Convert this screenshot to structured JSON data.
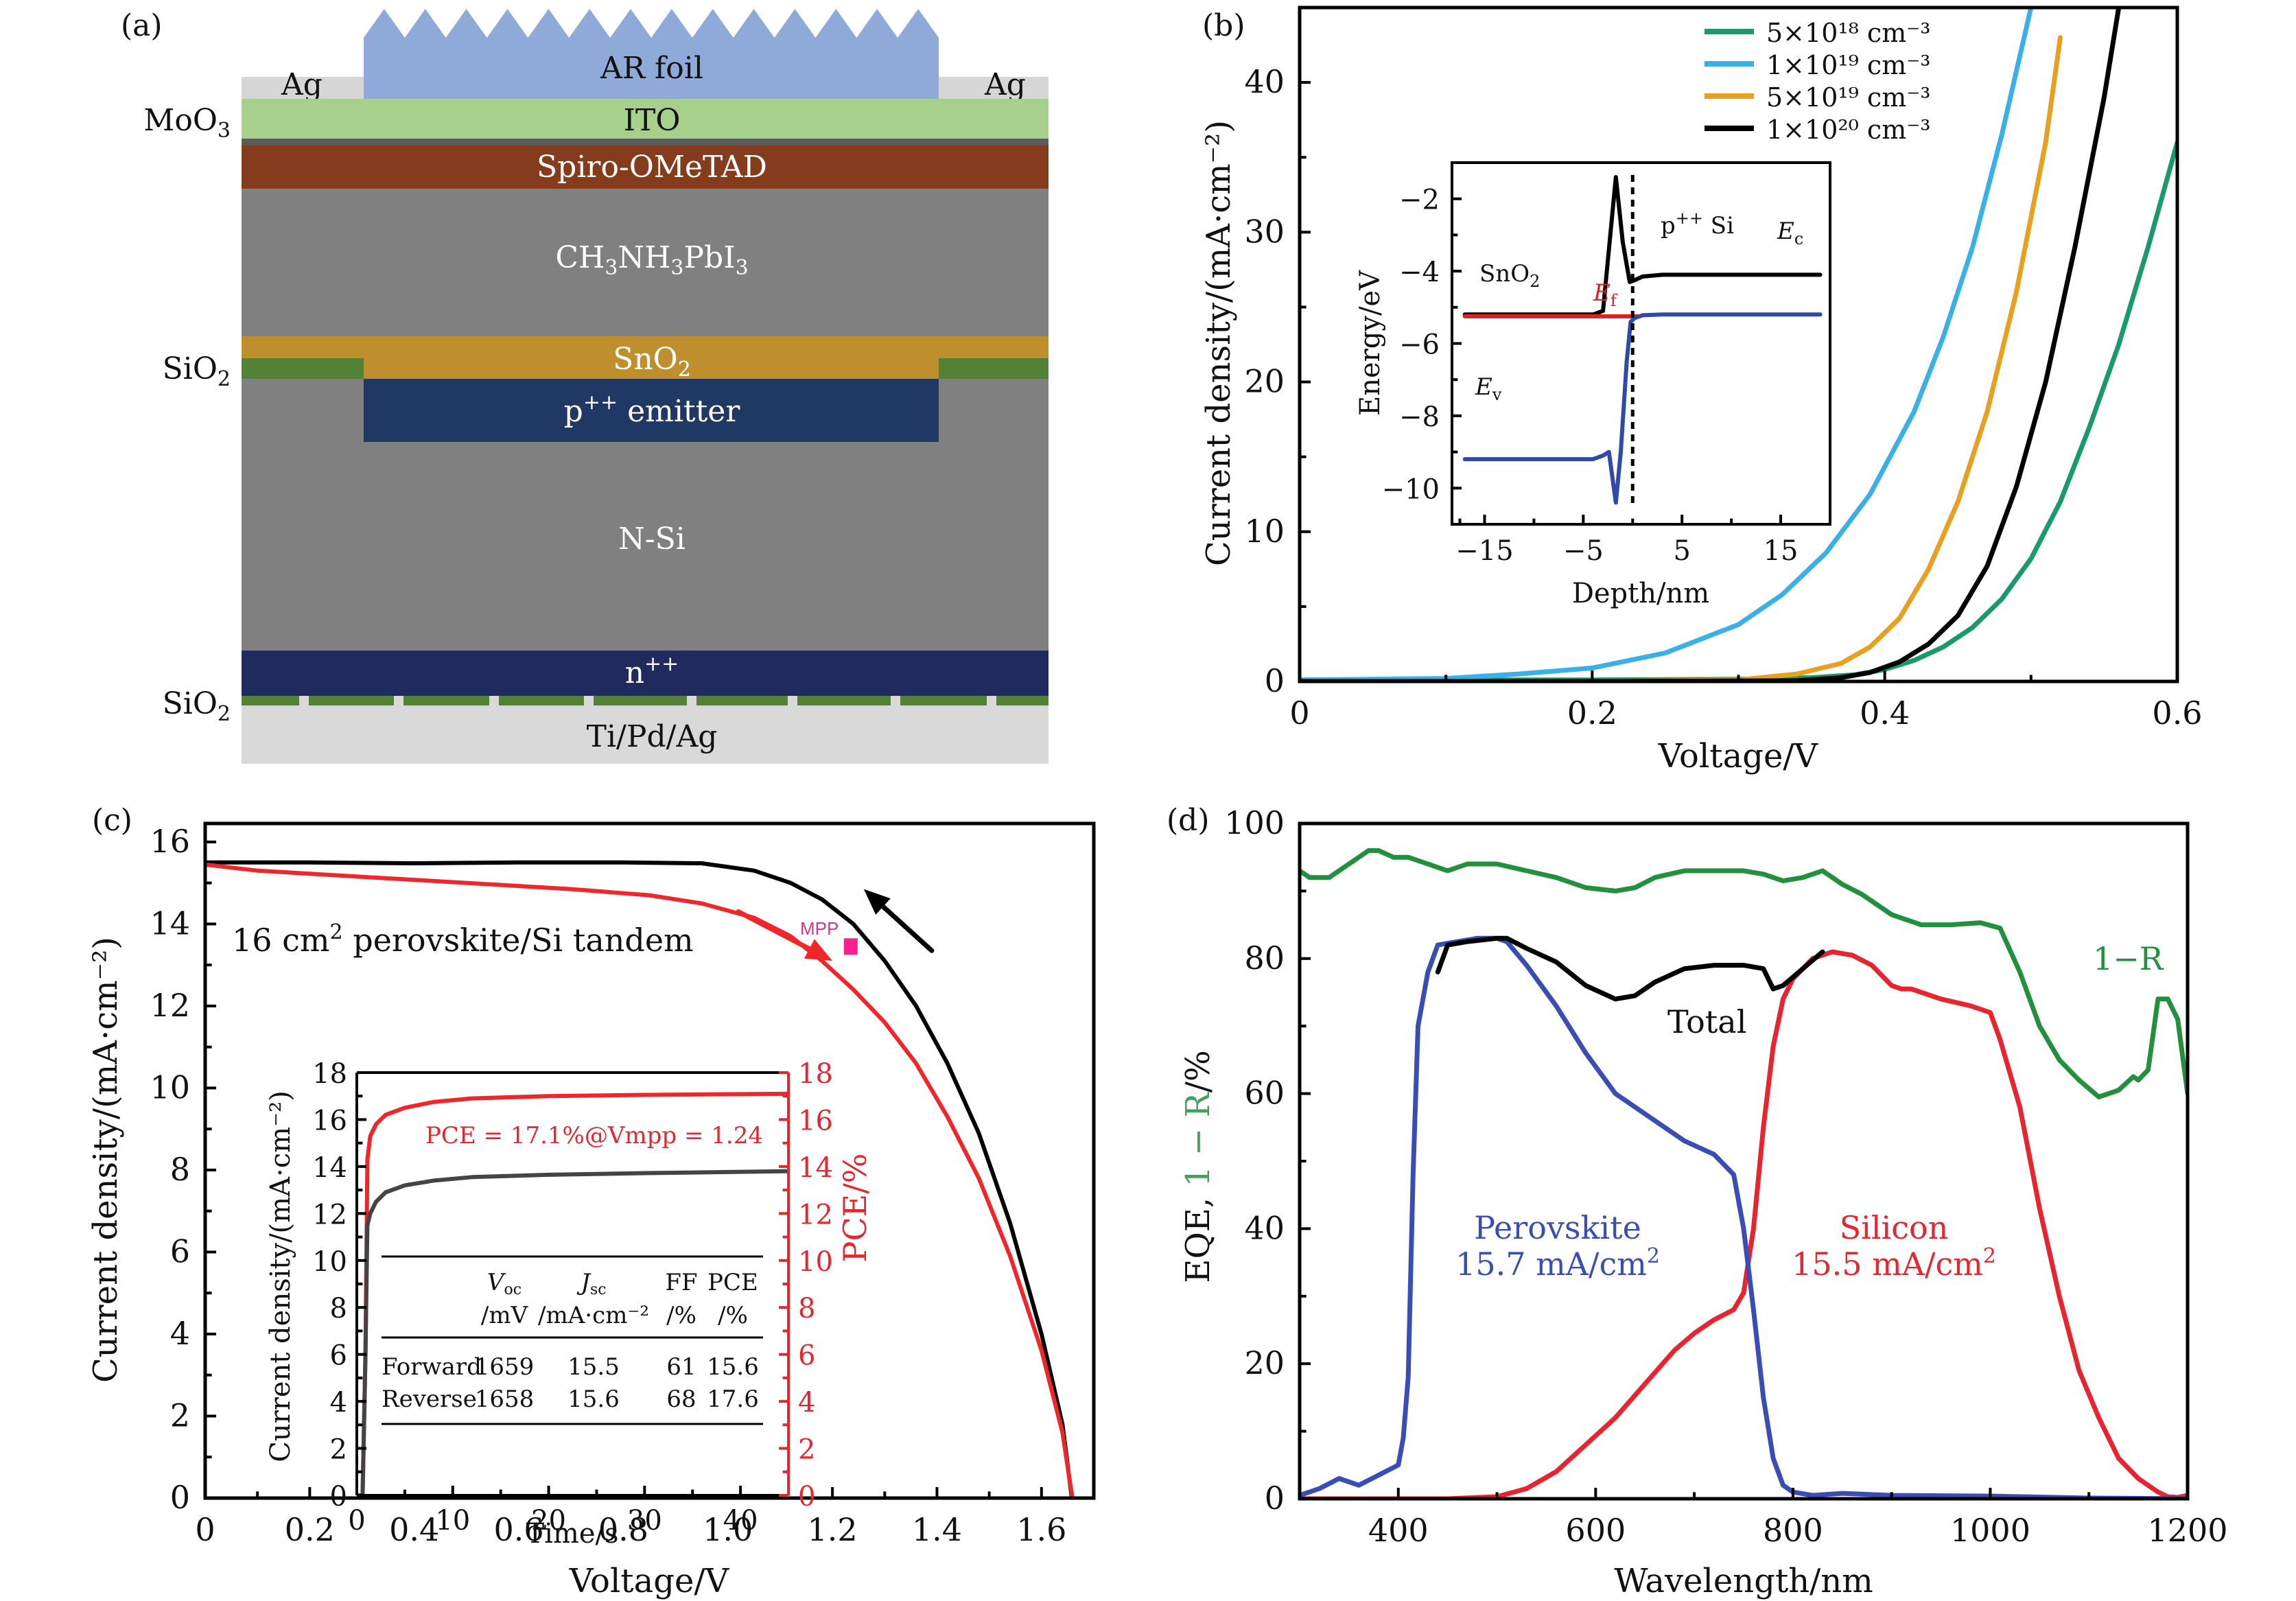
{
  "panel_a": {
    "label": "(a)",
    "layers": {
      "ar_foil": "AR foil",
      "ag_left": "Ag",
      "ag_right": "Ag",
      "ito": "ITO",
      "spiro": "Spiro-OMeTAD",
      "perovskite": "CH3NH3PbI3",
      "sno2": "SnO2",
      "emitter": "p++ emitter",
      "nsi": "N-Si",
      "npp": "n++",
      "metal": "Ti/Pd/Ag"
    },
    "side_labels": {
      "moo3": "MoO3",
      "sio2_top": "SiO2",
      "sio2_bottom": "SiO2"
    },
    "colors": {
      "ar_foil": "#8fa9d8",
      "ag": "#d6d6d6",
      "ito": "#a8d08d",
      "moo3": "#5a5a5a",
      "spiro": "#843c1c",
      "perovskite": "#808080",
      "sno2": "#bf8f2e",
      "sio2": "#538135",
      "emitter": "#1f3864",
      "npp": "#1f2a5e",
      "metal": "#d9d9d9"
    }
  },
  "chart_data": [
    {
      "id": "b",
      "panel_label": "(b)",
      "type": "line",
      "title": "",
      "xlabel": "Voltage/V",
      "ylabel": "Current density/(mA·cm⁻²)",
      "xlim": [
        0,
        0.6
      ],
      "ylim": [
        0,
        45
      ],
      "xticks": [
        0,
        0.2,
        0.4,
        0.6
      ],
      "xtick_labels": [
        "0",
        "0.2",
        "0.4",
        "0.6"
      ],
      "yticks": [
        0,
        10,
        20,
        30,
        40
      ],
      "ytick_labels": [
        "0",
        "10",
        "20",
        "30",
        "40"
      ],
      "legend_position": "top-right",
      "series": [
        {
          "name": "5×10¹⁸ cm⁻³",
          "color": "#1a9a6c",
          "x": [
            0,
            0.1,
            0.2,
            0.3,
            0.35,
            0.38,
            0.4,
            0.42,
            0.44,
            0.46,
            0.48,
            0.5,
            0.52,
            0.54,
            0.56,
            0.58,
            0.6
          ],
          "y": [
            0.1,
            0.1,
            0.1,
            0.15,
            0.25,
            0.45,
            0.8,
            1.4,
            2.3,
            3.6,
            5.5,
            8.2,
            12,
            17,
            22.5,
            29,
            36
          ]
        },
        {
          "name": "1×10¹⁹ cm⁻³",
          "color": "#3bb0e8",
          "x": [
            0,
            0.05,
            0.1,
            0.15,
            0.2,
            0.25,
            0.3,
            0.33,
            0.36,
            0.39,
            0.42,
            0.44,
            0.46,
            0.48,
            0.5
          ],
          "y": [
            0.1,
            0.15,
            0.2,
            0.5,
            0.9,
            1.9,
            3.8,
            5.8,
            8.6,
            12.5,
            18,
            23,
            29,
            36.5,
            45
          ]
        },
        {
          "name": "5×10¹⁹ cm⁻³",
          "color": "#e8a020",
          "x": [
            0,
            0.2,
            0.3,
            0.34,
            0.37,
            0.39,
            0.41,
            0.43,
            0.45,
            0.47,
            0.49,
            0.51,
            0.52
          ],
          "y": [
            0,
            0,
            0.1,
            0.5,
            1.2,
            2.3,
            4.2,
            7.5,
            12,
            18,
            26,
            36,
            43
          ]
        },
        {
          "name": "1×10²⁰ cm⁻³",
          "color": "#000000",
          "x": [
            0,
            0.2,
            0.34,
            0.37,
            0.39,
            0.41,
            0.43,
            0.45,
            0.47,
            0.49,
            0.51,
            0.53,
            0.55,
            0.56
          ],
          "y": [
            0,
            0,
            0.05,
            0.25,
            0.6,
            1.3,
            2.5,
            4.4,
            7.7,
            13,
            20,
            29,
            39,
            45
          ]
        }
      ],
      "inset": {
        "type": "line",
        "xlabel": "Depth/nm",
        "ylabel": "Energy/eV",
        "xlim": [
          -18.3,
          20
        ],
        "ylim": [
          -11,
          -1
        ],
        "xticks": [
          -15,
          -5,
          5,
          15
        ],
        "xtick_labels": [
          "−15",
          "−5",
          "5",
          "15"
        ],
        "yticks": [
          -2,
          -4,
          -6,
          -8,
          -10
        ],
        "ytick_labels": [
          "−2",
          "−4",
          "−6",
          "−8",
          "−10"
        ],
        "vline_x": 0,
        "annotations": {
          "sno2": "SnO2",
          "psi": "p++ Si",
          "ec": "Ec",
          "ef": "Ef",
          "ev": "Ev"
        },
        "series": [
          {
            "name": "Ec",
            "color": "#000000",
            "x": [
              -17,
              -4,
              -3,
              -2.4,
              -1.7,
              -1.0,
              -0.3,
              0.2,
              1,
              3,
              19
            ],
            "y": [
              -5.2,
              -5.2,
              -5.1,
              -3.4,
              -1.4,
              -3.2,
              -4.3,
              -4.25,
              -4.15,
              -4.1,
              -4.1
            ]
          },
          {
            "name": "Ef",
            "color": "#e32020",
            "x": [
              -17,
              0.5
            ],
            "y": [
              -5.25,
              -5.25
            ]
          },
          {
            "name": "Ev",
            "color": "#2f4aa8",
            "x": [
              -17,
              -4,
              -3,
              -2.4,
              -1.7,
              -1.2,
              -0.6,
              -0.2,
              0.2,
              1,
              3,
              19
            ],
            "y": [
              -9.2,
              -9.2,
              -9.1,
              -9.0,
              -10.4,
              -9.0,
              -6.5,
              -5.4,
              -5.3,
              -5.22,
              -5.2,
              -5.2
            ]
          }
        ]
      }
    },
    {
      "id": "c",
      "panel_label": "(c)",
      "type": "line",
      "title": "",
      "xlabel": "Voltage/V",
      "ylabel": "Current density/(mA·cm⁻²)",
      "xlim": [
        0,
        1.7
      ],
      "ylim": [
        0,
        16.45
      ],
      "xticks": [
        0,
        0.2,
        0.4,
        0.6,
        0.8,
        1.0,
        1.2,
        1.4,
        1.6
      ],
      "xtick_labels": [
        "0",
        "0.2",
        "0.4",
        "0.6",
        "0.8",
        "1.0",
        "1.2",
        "1.4",
        "1.6"
      ],
      "yticks": [
        0,
        2,
        4,
        6,
        8,
        10,
        12,
        14,
        16
      ],
      "ytick_labels": [
        "0",
        "2",
        "4",
        "6",
        "8",
        "10",
        "12",
        "14",
        "16"
      ],
      "annotation": "16 cm² perovskite/Si tandem",
      "mpp_label": "MPP",
      "mpp_point": {
        "x": 1.235,
        "y": 13.45
      },
      "series": [
        {
          "name": "Reverse",
          "color": "#000000",
          "x": [
            0,
            0.2,
            0.4,
            0.6,
            0.8,
            0.95,
            1.05,
            1.12,
            1.18,
            1.24,
            1.3,
            1.36,
            1.42,
            1.48,
            1.54,
            1.6,
            1.64,
            1.658
          ],
          "y": [
            15.5,
            15.5,
            15.48,
            15.5,
            15.5,
            15.48,
            15.3,
            15.0,
            14.6,
            14.0,
            13.1,
            12.0,
            10.6,
            8.9,
            6.7,
            4.0,
            1.8,
            0
          ]
        },
        {
          "name": "Forward",
          "color": "#f0262a",
          "x": [
            0,
            0.1,
            0.3,
            0.5,
            0.7,
            0.85,
            0.95,
            1.05,
            1.12,
            1.18,
            1.24,
            1.3,
            1.36,
            1.42,
            1.48,
            1.54,
            1.6,
            1.64,
            1.659
          ],
          "y": [
            15.45,
            15.3,
            15.15,
            15.0,
            14.85,
            14.7,
            14.5,
            14.15,
            13.7,
            13.1,
            12.4,
            11.6,
            10.6,
            9.3,
            7.8,
            5.9,
            3.6,
            1.6,
            0
          ]
        }
      ],
      "arrows": [
        {
          "name": "reverse-scan",
          "color": "#000000",
          "from": {
            "x": 1.39,
            "y": 13.35
          },
          "to": {
            "x": 1.26,
            "y": 14.85
          }
        },
        {
          "name": "forward-scan",
          "color": "#f0262a",
          "from": {
            "x": 1.02,
            "y": 14.3
          },
          "to": {
            "x": 1.2,
            "y": 13.1
          }
        }
      ],
      "inset": {
        "type": "line",
        "xlabel": "Time/s",
        "ylabel_left": "Current density/(mA·cm⁻²)",
        "ylabel_right": "PCE/%",
        "xlim": [
          0,
          45
        ],
        "ylim": [
          0,
          18
        ],
        "xticks": [
          0,
          10,
          20,
          30,
          40
        ],
        "xtick_labels": [
          "0",
          "10",
          "20",
          "30",
          "40"
        ],
        "yticks": [
          0,
          2,
          4,
          6,
          8,
          10,
          12,
          14,
          16,
          18
        ],
        "ytick_labels": [
          "0",
          "2",
          "4",
          "6",
          "8",
          "10",
          "12",
          "14",
          "16",
          "18"
        ],
        "annotation": "PCE = 17.1%@Vmpp = 1.24",
        "series": [
          {
            "name": "PCE",
            "color": "#f0262a",
            "x": [
              0,
              0.6,
              0.9,
              1.1,
              1.4,
              2,
              3,
              5,
              8,
              12,
              20,
              30,
              45
            ],
            "y": [
              0,
              0,
              6,
              14.3,
              15.3,
              15.8,
              16.2,
              16.5,
              16.75,
              16.9,
              17.0,
              17.05,
              17.1
            ]
          },
          {
            "name": "Current density",
            "color": "#444444",
            "x": [
              0,
              0.6,
              0.9,
              1.1,
              1.4,
              2,
              3,
              5,
              8,
              12,
              20,
              30,
              45
            ],
            "y": [
              0,
              0,
              6,
              11.5,
              12.0,
              12.5,
              12.9,
              13.2,
              13.4,
              13.55,
              13.65,
              13.72,
              13.8
            ]
          }
        ],
        "table": {
          "headers": [
            {
              "main": "",
              "unit": ""
            },
            {
              "main": "Voc",
              "unit": "/mV"
            },
            {
              "main": "Jsc",
              "unit": "/mA·cm⁻²"
            },
            {
              "main": "FF",
              "unit": "/%"
            },
            {
              "main": "PCE",
              "unit": "/%"
            }
          ],
          "rows": [
            [
              "Forward",
              "1659",
              "15.5",
              "61",
              "15.6"
            ],
            [
              "Reverse",
              "1658",
              "15.6",
              "68",
              "17.6"
            ]
          ]
        }
      }
    },
    {
      "id": "d",
      "panel_label": "(d)",
      "type": "line",
      "title": "",
      "xlabel": "Wavelength/nm",
      "ylabel": "EQE, 1−R/%",
      "xlim": [
        300,
        1200
      ],
      "ylim": [
        0,
        100
      ],
      "xticks": [
        400,
        600,
        800,
        1000,
        1200
      ],
      "xtick_labels": [
        "400",
        "600",
        "800",
        "1000",
        "1200"
      ],
      "yticks": [
        0,
        20,
        40,
        60,
        80,
        100
      ],
      "ytick_labels": [
        "0",
        "20",
        "40",
        "60",
        "80",
        "100"
      ],
      "series": [
        {
          "name": "1−R",
          "label": "1−R",
          "color": "#22903c",
          "x": [
            300,
            310,
            330,
            350,
            370,
            380,
            395,
            410,
            430,
            450,
            470,
            500,
            530,
            560,
            590,
            620,
            640,
            660,
            690,
            720,
            750,
            770,
            790,
            810,
            830,
            850,
            870,
            900,
            930,
            960,
            990,
            1010,
            1030,
            1050,
            1070,
            1090,
            1110,
            1130,
            1145,
            1150,
            1160,
            1170,
            1180,
            1190,
            1200
          ],
          "y": [
            93,
            92,
            92,
            94,
            96,
            96,
            95,
            95,
            94,
            93,
            94,
            94,
            93,
            92,
            90.5,
            90,
            90.5,
            92,
            93,
            93,
            93,
            92.5,
            91.5,
            92,
            93,
            91,
            89.5,
            86.5,
            85,
            85,
            85.3,
            84.5,
            78,
            70,
            65,
            62,
            59.5,
            60.5,
            62.5,
            62,
            63.5,
            74,
            74,
            71,
            60
          ]
        },
        {
          "name": "Perovskite",
          "label": "Perovskite",
          "sublabel": "15.7 mA/cm²",
          "color": "#3a4db5",
          "x": [
            300,
            320,
            340,
            360,
            380,
            400,
            405,
            410,
            415,
            420,
            430,
            440,
            460,
            480,
            500,
            510,
            530,
            560,
            590,
            620,
            640,
            660,
            690,
            720,
            740,
            750,
            760,
            770,
            780,
            790,
            800,
            820,
            850,
            900,
            1000,
            1100,
            1200
          ],
          "y": [
            0.5,
            1.5,
            3,
            2,
            3.5,
            5,
            9,
            18,
            48,
            70,
            78,
            82,
            82.5,
            83,
            83,
            82.5,
            79,
            73,
            66,
            60,
            58,
            56,
            53,
            51,
            48,
            40,
            28,
            15,
            6,
            2,
            1,
            0.5,
            0.8,
            0.5,
            0.4,
            0.1,
            0
          ]
        },
        {
          "name": "Silicon",
          "label": "Silicon",
          "sublabel": "15.5 mA/cm²",
          "color": "#e8252e",
          "x": [
            300,
            450,
            500,
            530,
            560,
            590,
            620,
            650,
            680,
            700,
            720,
            740,
            750,
            760,
            770,
            780,
            790,
            800,
            820,
            840,
            860,
            880,
            900,
            910,
            920,
            950,
            980,
            1000,
            1010,
            1030,
            1050,
            1070,
            1090,
            1110,
            1130,
            1150,
            1170,
            1180,
            1190,
            1200
          ],
          "y": [
            0,
            0,
            0.3,
            1.5,
            4,
            8,
            12,
            17,
            22,
            24.5,
            26.5,
            28,
            30.5,
            40,
            55,
            67,
            74,
            77,
            80,
            81,
            80.5,
            79,
            76,
            75.5,
            75.5,
            74,
            73,
            72,
            68,
            58,
            43,
            30,
            19,
            12,
            6,
            3,
            1,
            0.3,
            0.2,
            0.5
          ]
        },
        {
          "name": "Total",
          "label": "Total",
          "color": "#000000",
          "x": [
            440,
            450,
            470,
            500,
            510,
            530,
            560,
            590,
            620,
            640,
            660,
            690,
            720,
            740,
            750,
            770,
            780,
            790,
            810,
            830
          ],
          "y": [
            78,
            82,
            82.5,
            83,
            83,
            81.5,
            79.5,
            76,
            74,
            74.5,
            76.5,
            78.5,
            79,
            79,
            79,
            78.5,
            75.5,
            76,
            78.5,
            81
          ]
        }
      ]
    }
  ]
}
